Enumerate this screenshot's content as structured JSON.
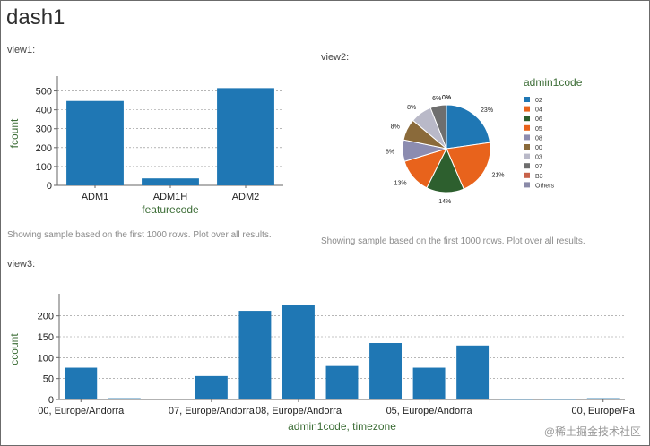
{
  "dashboard": {
    "title": "dash1"
  },
  "views": {
    "view1_label": "view1:",
    "view2_label": "view2:",
    "view3_label": "view3:",
    "note1": "Showing sample based on the first 1000 rows. Plot over all results.",
    "note2": "Showing sample based on the first 1000 rows. Plot over all results."
  },
  "watermark": "@稀土掘金技术社区",
  "colors": {
    "bar": "#1f77b4",
    "grid": "#8a8a8a"
  },
  "chart_data": [
    {
      "type": "bar",
      "categories": [
        "ADM1",
        "ADM1H",
        "ADM2"
      ],
      "values": [
        447,
        37,
        515
      ],
      "xlabel": "featurecode",
      "ylabel": "fcount",
      "ylim": [
        0,
        550
      ],
      "yticks": [
        0,
        100,
        200,
        300,
        400,
        500
      ],
      "grid": true
    },
    {
      "type": "pie",
      "legend_title": "admin1code",
      "labels": [
        "02",
        "04",
        "06",
        "05",
        "08",
        "00",
        "03",
        "07",
        "B3",
        "Others"
      ],
      "values": [
        23,
        21,
        14,
        13,
        8,
        8,
        8,
        6,
        0,
        0
      ],
      "value_labels": [
        "23%",
        "21%",
        "14%",
        "13%",
        "8%",
        "8%",
        "8%",
        "6%",
        "0%",
        "0%"
      ],
      "colors": [
        "#1f77b4",
        "#e8631c",
        "#2d5f2e",
        "#e8631c",
        "#8c8cb0",
        "#8a6a3a",
        "#b9b9c8",
        "#6e6e6e",
        "#c8624a",
        "#8a8aa8"
      ],
      "legend_position": "right"
    },
    {
      "type": "bar",
      "categories": [
        "00, Europe/Andorra",
        "",
        "",
        "07, Europe/Andorra",
        "",
        "08, Europe/Andorra",
        "",
        "",
        "05, Europe/Andorra",
        "",
        "",
        "",
        "00, Europe/Pa"
      ],
      "values": [
        76,
        3,
        2,
        56,
        212,
        225,
        80,
        135,
        76,
        129,
        1,
        1,
        3
      ],
      "xlabel": "admin1code, timezone",
      "ylabel": "ccount",
      "ylim": [
        0,
        240
      ],
      "yticks": [
        0,
        50,
        100,
        150,
        200
      ],
      "grid": true
    }
  ]
}
